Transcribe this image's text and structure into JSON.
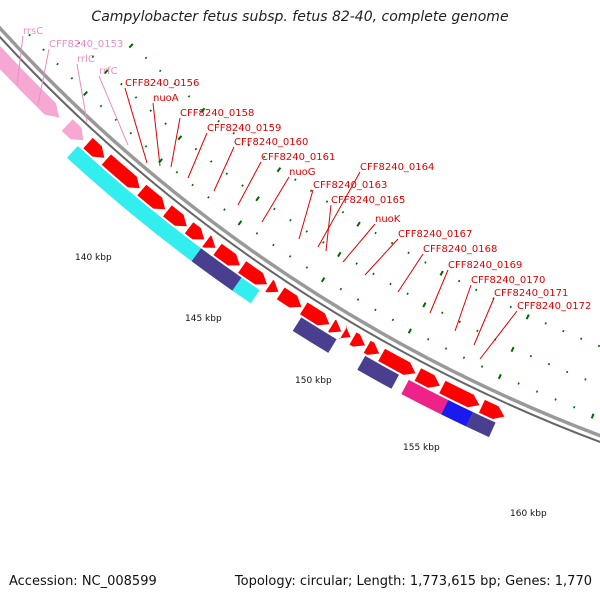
{
  "title": "Campylobacter fetus subsp. fetus 82-40, complete genome",
  "footer": {
    "accession": "Accession: NC_008599",
    "summary": "Topology: circular; Length: 1,773,615 bp; Genes: 1,770"
  },
  "colors": {
    "rna": "#f7a8d2",
    "rna_label": "#e58fc4",
    "cds_forward": "#ff0000",
    "cds_label": "#e00000",
    "cyan_block": "#33eeee",
    "purple_block": "#4a3f8f",
    "magenta_block": "#ee2288",
    "blue_block": "#1a1aee",
    "backbone": "#999999",
    "tick": "#006600"
  },
  "scale_labels": [
    "140 kbp",
    "145 kbp",
    "150 kbp",
    "155 kbp",
    "160 kbp"
  ],
  "rna_labels": [
    "rrsC",
    "CFF8240_0153",
    "rrlC",
    "rrfC"
  ],
  "gene_labels": [
    "CFF8240_0156",
    "nuoA",
    "CFF8240_0158",
    "CFF8240_0159",
    "CFF8240_0160",
    "CFF8240_0161",
    "nuoG",
    "CFF8240_0163",
    "CFF8240_0164",
    "CFF8240_0165",
    "nuoK",
    "CFF8240_0167",
    "CFF8240_0168",
    "CFF8240_0169",
    "CFF8240_0170",
    "CFF8240_0171",
    "CFF8240_0172"
  ]
}
